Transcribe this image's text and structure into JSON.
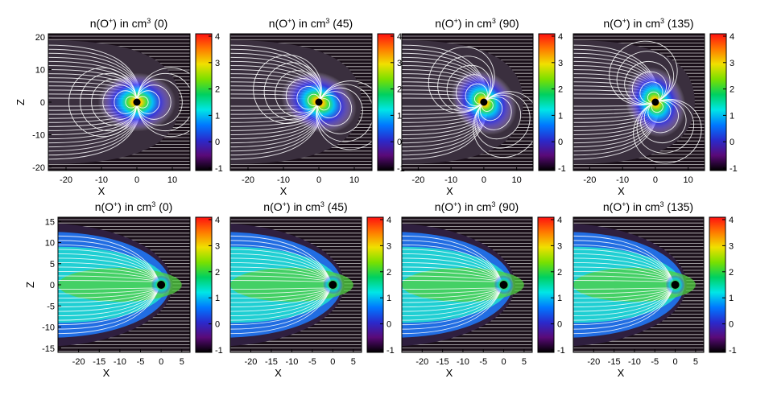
{
  "colorbar": {
    "ticks": [
      "-1",
      "0",
      "1",
      "2",
      "3",
      "4"
    ],
    "colors": [
      "#000000",
      "#5a0a78",
      "#2a2acc",
      "#0078ff",
      "#00e6e6",
      "#00d060",
      "#7ae000",
      "#f0e000",
      "#ff7a00",
      "#ff1010"
    ]
  },
  "background_color": "#1a0f19",
  "streamline_color": "#ffffff",
  "planet_color": "#000000",
  "chart_data": [
    {
      "type": "heatmap",
      "title_prefix": "n(O",
      "title_sup_charge": "+",
      "title_mid": ") in cm",
      "title_sup_exp": "3",
      "angle_label": "(0)",
      "xlabel": "X",
      "ylabel": "Z",
      "xlim": [
        -25,
        15
      ],
      "ylim": [
        -21,
        21
      ],
      "xticks": [
        "-20",
        "-10",
        "0",
        "10"
      ],
      "yticks": [
        "-20",
        "-10",
        "0",
        "10",
        "20"
      ],
      "view": "dipole",
      "tilt": 0,
      "clim": [
        -1,
        4
      ]
    },
    {
      "type": "heatmap",
      "title_prefix": "n(O",
      "title_sup_charge": "+",
      "title_mid": ") in cm",
      "title_sup_exp": "3",
      "angle_label": "(45)",
      "xlabel": "X",
      "ylabel": "",
      "xlim": [
        -25,
        15
      ],
      "ylim": [
        -21,
        21
      ],
      "xticks": [
        "-20",
        "-10",
        "0",
        "10"
      ],
      "yticks": [],
      "view": "dipole",
      "tilt": 45,
      "clim": [
        -1,
        4
      ]
    },
    {
      "type": "heatmap",
      "title_prefix": "n(O",
      "title_sup_charge": "+",
      "title_mid": ") in cm",
      "title_sup_exp": "3",
      "angle_label": "(90)",
      "xlabel": "X",
      "ylabel": "",
      "xlim": [
        -25,
        15
      ],
      "ylim": [
        -21,
        21
      ],
      "xticks": [
        "-20",
        "-10",
        "0",
        "10"
      ],
      "yticks": [],
      "view": "dipole",
      "tilt": 90,
      "clim": [
        -1,
        4
      ]
    },
    {
      "type": "heatmap",
      "title_prefix": "n(O",
      "title_sup_charge": "+",
      "title_mid": ") in cm",
      "title_sup_exp": "3",
      "angle_label": "(135)",
      "xlabel": "X",
      "ylabel": "",
      "xlim": [
        -25,
        15
      ],
      "ylim": [
        -21,
        21
      ],
      "xticks": [
        "-20",
        "-10",
        "0",
        "10"
      ],
      "yticks": [],
      "view": "dipole",
      "tilt": 135,
      "clim": [
        -1,
        4
      ]
    },
    {
      "type": "heatmap",
      "title_prefix": "n(O",
      "title_sup_charge": "+",
      "title_mid": ") in cm",
      "title_sup_exp": "3",
      "angle_label": "(0)",
      "xlabel": "X",
      "ylabel": "Z",
      "xlim": [
        -25,
        7
      ],
      "ylim": [
        -16,
        16
      ],
      "xticks": [
        "-20",
        "-15",
        "-10",
        "-5",
        "0",
        "5"
      ],
      "yticks": [
        "-15",
        "-10",
        "-5",
        "0",
        "5",
        "10",
        "15"
      ],
      "view": "tail",
      "tilt": 0,
      "clim": [
        -1,
        4
      ]
    },
    {
      "type": "heatmap",
      "title_prefix": "n(O",
      "title_sup_charge": "+",
      "title_mid": ") in cm",
      "title_sup_exp": "3",
      "angle_label": "(45)",
      "xlabel": "X",
      "ylabel": "",
      "xlim": [
        -25,
        7
      ],
      "ylim": [
        -16,
        16
      ],
      "xticks": [
        "-20",
        "-15",
        "-10",
        "-5",
        "0",
        "5"
      ],
      "yticks": [],
      "view": "tail",
      "tilt": 45,
      "clim": [
        -1,
        4
      ]
    },
    {
      "type": "heatmap",
      "title_prefix": "n(O",
      "title_sup_charge": "+",
      "title_mid": ") in cm",
      "title_sup_exp": "3",
      "angle_label": "(90)",
      "xlabel": "X",
      "ylabel": "",
      "xlim": [
        -25,
        7
      ],
      "ylim": [
        -16,
        16
      ],
      "xticks": [
        "-20",
        "-15",
        "-10",
        "-5",
        "0",
        "5"
      ],
      "yticks": [],
      "view": "tail",
      "tilt": 90,
      "clim": [
        -1,
        4
      ]
    },
    {
      "type": "heatmap",
      "title_prefix": "n(O",
      "title_sup_charge": "+",
      "title_mid": ") in cm",
      "title_sup_exp": "3",
      "angle_label": "(135)",
      "xlabel": "X",
      "ylabel": "",
      "xlim": [
        -25,
        7
      ],
      "ylim": [
        -16,
        16
      ],
      "xticks": [
        "-20",
        "-15",
        "-10",
        "-5",
        "0",
        "5"
      ],
      "yticks": [],
      "view": "tail",
      "tilt": 135,
      "clim": [
        -1,
        4
      ]
    }
  ]
}
